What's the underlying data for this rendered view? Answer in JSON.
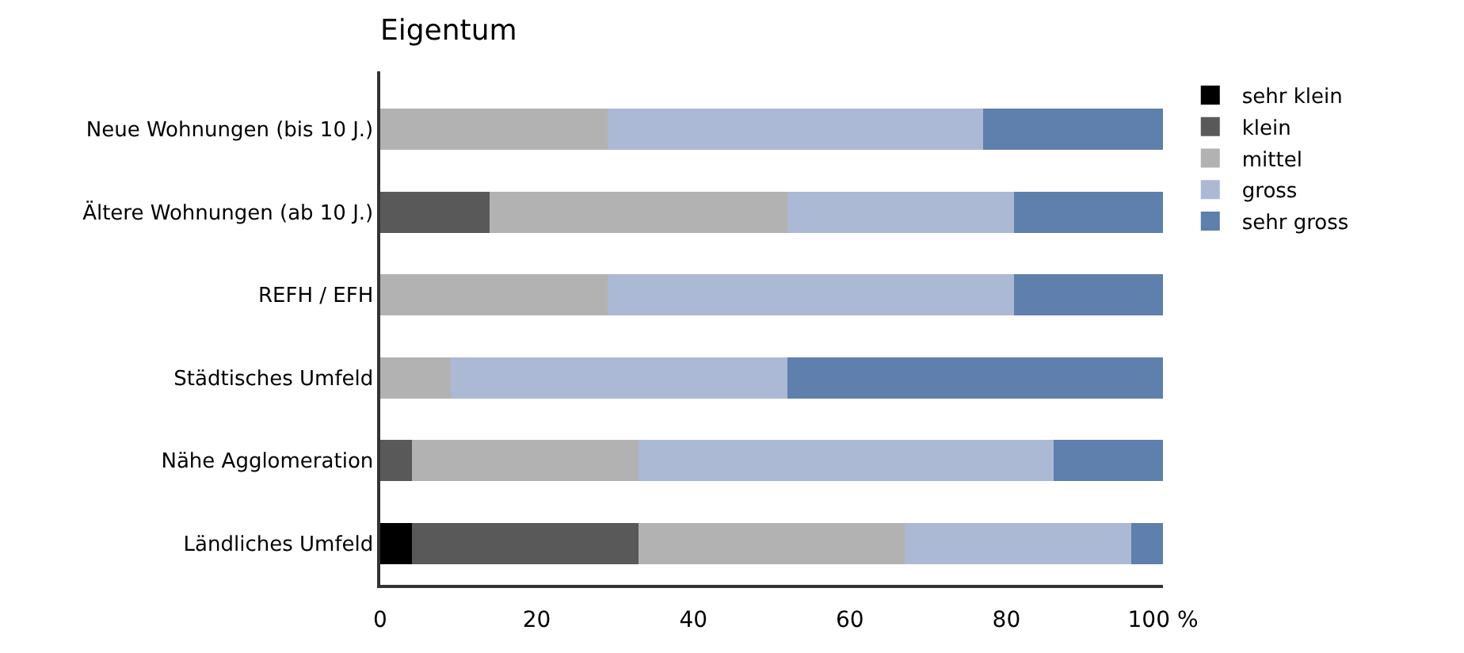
{
  "chart_data": {
    "type": "bar",
    "orientation": "horizontal",
    "stacked": true,
    "title": "Eigentum",
    "categories": [
      "Neue Wohnungen (bis 10 J.)",
      "Ältere Wohnungen (ab 10 J.)",
      "REFH / EFH",
      "Städtisches Umfeld",
      "Nähe Agglomeration",
      "Ländliches Umfeld"
    ],
    "series": [
      {
        "name": "sehr klein",
        "color": "#000000",
        "values": [
          0,
          0,
          0,
          0,
          0,
          4
        ]
      },
      {
        "name": "klein",
        "color": "#595959",
        "values": [
          0,
          14,
          0,
          0,
          4,
          29
        ]
      },
      {
        "name": "mittel",
        "color": "#b2b2b2",
        "values": [
          29,
          38,
          29,
          9,
          29,
          34
        ]
      },
      {
        "name": "gross",
        "color": "#abb9d5",
        "values": [
          48,
          29,
          52,
          43,
          53,
          29
        ]
      },
      {
        "name": "sehr gross",
        "color": "#5f7fac",
        "values": [
          23,
          19,
          19,
          48,
          14,
          4
        ]
      }
    ],
    "xlim": [
      0,
      100
    ],
    "xticks": [
      0,
      20,
      40,
      60,
      80,
      {
        "value": 100,
        "label": "100 %"
      }
    ],
    "legend": "top right"
  }
}
